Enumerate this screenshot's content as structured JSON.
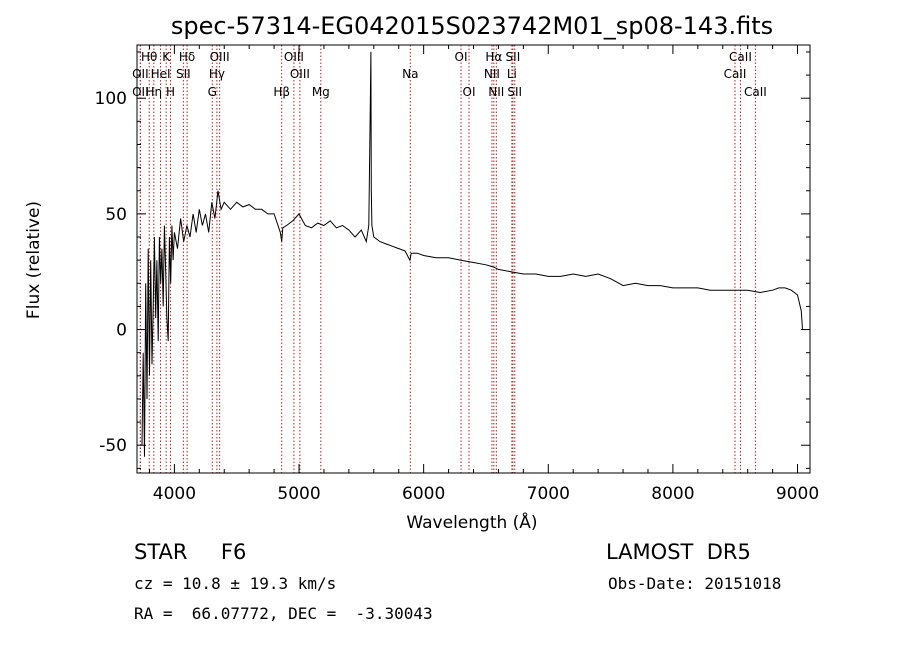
{
  "chart_data": {
    "type": "line",
    "title": "spec-57314-EG042015S023742M01_sp08-143.fits",
    "xlabel": "Wavelength (Å)",
    "ylabel": "Flux (relative)",
    "xlim": [
      3700,
      9100
    ],
    "ylim": [
      -62,
      123
    ],
    "xticks": [
      "4000",
      "5000",
      "6000",
      "7000",
      "8000",
      "9000"
    ],
    "xtick_values": [
      4000,
      5000,
      6000,
      7000,
      8000,
      9000
    ],
    "yticks": [
      "-50",
      "0",
      "50",
      "100"
    ],
    "ytick_values": [
      -50,
      0,
      50,
      100
    ],
    "grid": false,
    "series": [
      {
        "line_color": "#000000",
        "x": [
          3740,
          3750,
          3760,
          3770,
          3780,
          3790,
          3800,
          3810,
          3820,
          3830,
          3840,
          3850,
          3860,
          3870,
          3880,
          3890,
          3900,
          3910,
          3920,
          3930,
          3940,
          3950,
          3960,
          3970,
          3980,
          3990,
          4000,
          4025,
          4050,
          4075,
          4100,
          4125,
          4150,
          4175,
          4200,
          4225,
          4250,
          4275,
          4300,
          4325,
          4350,
          4375,
          4400,
          4450,
          4500,
          4550,
          4600,
          4650,
          4700,
          4750,
          4800,
          4850,
          4861,
          4870,
          4900,
          4950,
          5000,
          5050,
          5100,
          5150,
          5200,
          5250,
          5300,
          5350,
          5400,
          5450,
          5500,
          5540,
          5560,
          5570,
          5577,
          5580,
          5585,
          5600,
          5650,
          5700,
          5750,
          5800,
          5850,
          5890,
          5900,
          5950,
          6000,
          6100,
          6200,
          6300,
          6400,
          6500,
          6563,
          6600,
          6700,
          6800,
          6900,
          7000,
          7100,
          7200,
          7300,
          7400,
          7500,
          7600,
          7700,
          7800,
          7900,
          8000,
          8100,
          8200,
          8300,
          8400,
          8500,
          8600,
          8700,
          8800,
          8850,
          8900,
          8950,
          9000,
          9030,
          9040
        ],
        "y": [
          -50,
          -10,
          -55,
          20,
          -30,
          35,
          -20,
          30,
          -15,
          10,
          40,
          5,
          30,
          -5,
          40,
          20,
          35,
          10,
          45,
          25,
          5,
          -5,
          40,
          20,
          45,
          30,
          42,
          35,
          48,
          38,
          45,
          40,
          50,
          42,
          52,
          45,
          50,
          42,
          55,
          48,
          60,
          52,
          55,
          52,
          55,
          53,
          54,
          52,
          52,
          50,
          50,
          42,
          38,
          44,
          45,
          47,
          50,
          45,
          44,
          46,
          45,
          47,
          44,
          45,
          43,
          40,
          43,
          38,
          45,
          90,
          120,
          60,
          45,
          40,
          38,
          37,
          36,
          35,
          34,
          30,
          33,
          33,
          32,
          31,
          31,
          30,
          29,
          28,
          27,
          26,
          25,
          24,
          24,
          23,
          23,
          24,
          23,
          24,
          22,
          19,
          20,
          19,
          19,
          18,
          18,
          18,
          17,
          17,
          17,
          17,
          16,
          17,
          18,
          18,
          17,
          15,
          8,
          0
        ]
      }
    ],
    "line_annotations": [
      {
        "label": "Hθ",
        "x": 3798,
        "row": 1
      },
      {
        "label": "OII",
        "x": 3727,
        "row": 2
      },
      {
        "label": "OII",
        "x": 3727,
        "row": 3
      },
      {
        "label": "Hη",
        "x": 3835,
        "row": 3
      },
      {
        "label": "K",
        "x": 3934,
        "row": 1
      },
      {
        "label": "HeI",
        "x": 3889,
        "row": 2
      },
      {
        "label": "H",
        "x": 3969,
        "row": 3
      },
      {
        "label": "Hδ",
        "x": 4102,
        "row": 1
      },
      {
        "label": "SII",
        "x": 4072,
        "row": 2
      },
      {
        "label": "OIII",
        "x": 4363,
        "row": 1
      },
      {
        "label": "Hγ",
        "x": 4341,
        "row": 2
      },
      {
        "label": "G",
        "x": 4304,
        "row": 3
      },
      {
        "label": "OIII",
        "x": 4959,
        "row": 1
      },
      {
        "label": "OIII",
        "x": 5007,
        "row": 2
      },
      {
        "label": "Hβ",
        "x": 4861,
        "row": 3
      },
      {
        "label": "Mg",
        "x": 5175,
        "row": 3
      },
      {
        "label": "Na",
        "x": 5893,
        "row": 2
      },
      {
        "label": "OI",
        "x": 6300,
        "row": 1
      },
      {
        "label": "OI",
        "x": 6364,
        "row": 3
      },
      {
        "label": "Hα",
        "x": 6563,
        "row": 1
      },
      {
        "label": "NII",
        "x": 6548,
        "row": 2
      },
      {
        "label": "NII",
        "x": 6583,
        "row": 3
      },
      {
        "label": "SII",
        "x": 6716,
        "row": 1
      },
      {
        "label": "Li",
        "x": 6708,
        "row": 2
      },
      {
        "label": "SII",
        "x": 6731,
        "row": 3
      },
      {
        "label": "CaII",
        "x": 8542,
        "row": 1
      },
      {
        "label": "CaII",
        "x": 8498,
        "row": 2
      },
      {
        "label": "CaII",
        "x": 8662,
        "row": 3
      }
    ],
    "marker_line_color": "#b22222"
  },
  "info": {
    "object_class": "STAR     F6",
    "survey": "LAMOST  DR5",
    "cz": "cz = 10.8 ± 19.3 km/s",
    "obs_date": "Obs-Date: 20151018",
    "coords": "RA =  66.07772, DEC =  -3.30043"
  }
}
